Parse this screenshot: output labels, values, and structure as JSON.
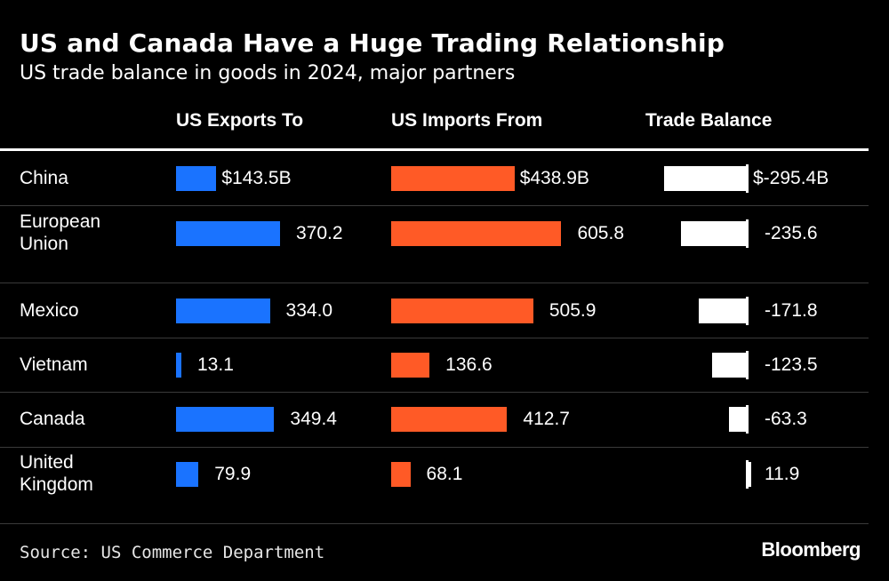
{
  "chart_data": {
    "type": "bar",
    "title": "US and Canada Have a Huge Trading Relationship",
    "subtitle": "US trade balance in goods in 2024, major partners",
    "columns": [
      "US Exports To",
      "US Imports From",
      "Trade Balance"
    ],
    "categories": [
      "China",
      "European\nUnion",
      "Mexico",
      "Vietnam",
      "Canada",
      "United\nKingdom"
    ],
    "series": [
      {
        "name": "US Exports To",
        "values": [
          143.5,
          370.2,
          334.0,
          13.1,
          349.4,
          79.9
        ],
        "labels": [
          "$143.5B",
          "370.2",
          "334.0",
          "13.1",
          "349.4",
          "79.9"
        ],
        "color": "#1a73ff"
      },
      {
        "name": "US Imports From",
        "values": [
          438.9,
          605.8,
          505.9,
          136.6,
          412.7,
          68.1
        ],
        "labels": [
          "$438.9B",
          "605.8",
          "505.9",
          "136.6",
          "412.7",
          "68.1"
        ],
        "color": "#ff5a26"
      },
      {
        "name": "Trade Balance",
        "values": [
          -295.4,
          -235.6,
          -171.8,
          -123.5,
          -63.3,
          11.9
        ],
        "labels": [
          "$-295.4B",
          "-235.6",
          "-171.8",
          "-123.5",
          "-63.3",
          "11.9"
        ],
        "color": "#ffffff"
      }
    ],
    "source": "Source: US Commerce Department",
    "brand": "Bloomberg"
  }
}
